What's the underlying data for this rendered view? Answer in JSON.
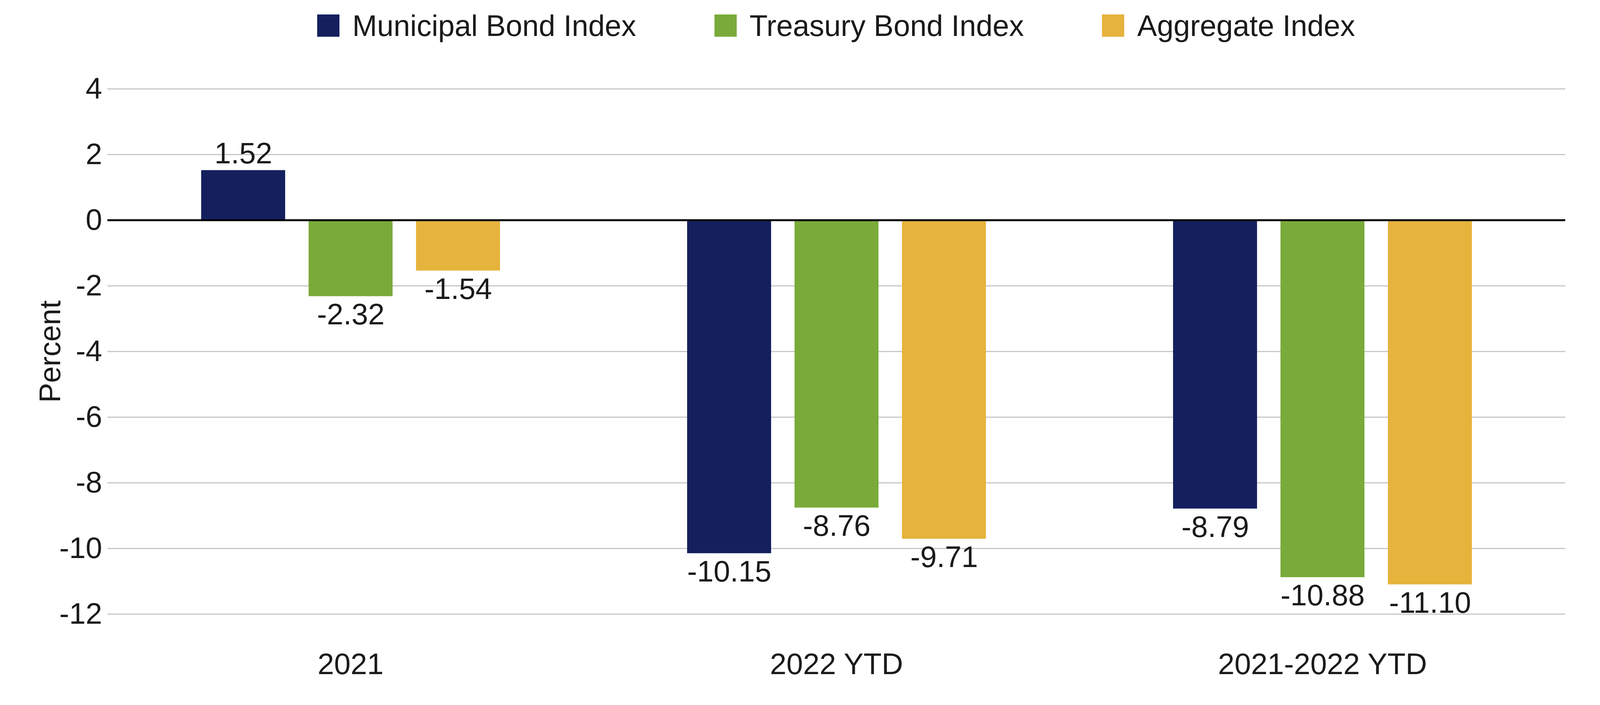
{
  "chart_data": {
    "type": "bar",
    "y_label": "Percent",
    "categories": [
      "2021",
      "2022 YTD",
      "2021-2022 YTD"
    ],
    "series": [
      {
        "name": "Municipal Bond Index",
        "color": "#14205e",
        "values": [
          1.52,
          -10.15,
          -8.79
        ],
        "value_labels": [
          "1.52",
          "-10.15",
          "-8.79"
        ]
      },
      {
        "name": "Treasury Bond Index",
        "color": "#7aab3a",
        "values": [
          -2.32,
          -8.76,
          -10.88
        ],
        "value_labels": [
          "-2.32",
          "-8.76",
          "-10.88"
        ]
      },
      {
        "name": "Aggregate Index",
        "color": "#e6b33c",
        "values": [
          -1.54,
          -9.71,
          -11.1
        ],
        "value_labels": [
          "-1.54",
          "-9.71",
          "-11.10"
        ]
      }
    ],
    "ylim": [
      -12,
      4
    ],
    "yticks": [
      -12,
      -10,
      -8,
      -6,
      -4,
      -2,
      0,
      2,
      4
    ],
    "grid": true,
    "legend": "top",
    "data_labels": true
  }
}
